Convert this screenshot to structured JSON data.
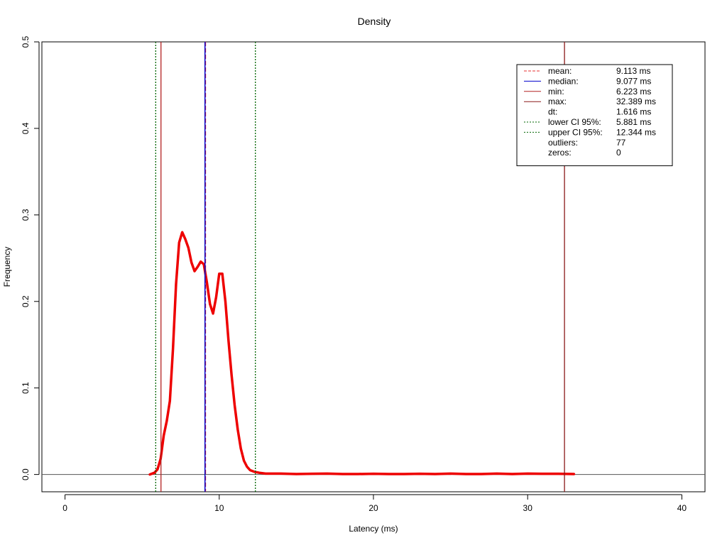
{
  "chart_data": {
    "type": "line",
    "title": "Density",
    "xlabel": "Latency (ms)",
    "ylabel": "Frequency",
    "xlim": [
      -1.5,
      41.5
    ],
    "ylim": [
      -0.02,
      0.5
    ],
    "x_ticks": [
      0,
      10,
      20,
      30,
      40
    ],
    "x_tick_labels": [
      "0",
      "10",
      "20",
      "30",
      "40"
    ],
    "y_ticks": [
      0.0,
      0.1,
      0.2,
      0.3,
      0.4,
      0.5
    ],
    "y_tick_labels": [
      "0.0",
      "0.1",
      "0.2",
      "0.3",
      "0.4",
      "0.5"
    ],
    "series": [
      {
        "color": "#ee0000",
        "x": [
          5.5,
          5.8,
          6.0,
          6.2,
          6.4,
          6.6,
          6.8,
          7.0,
          7.2,
          7.4,
          7.6,
          7.8,
          8.0,
          8.2,
          8.4,
          8.6,
          8.8,
          9.0,
          9.2,
          9.4,
          9.6,
          9.8,
          10.0,
          10.2,
          10.4,
          10.6,
          10.8,
          11.0,
          11.2,
          11.4,
          11.6,
          11.8,
          12.0,
          12.3,
          12.6,
          13.0,
          14,
          15,
          16,
          17,
          18,
          19,
          20,
          21,
          22,
          23,
          24,
          25,
          26,
          27,
          28,
          29,
          30,
          31,
          32,
          33
        ],
        "y": [
          0.0,
          0.002,
          0.006,
          0.018,
          0.045,
          0.062,
          0.085,
          0.145,
          0.22,
          0.268,
          0.28,
          0.272,
          0.262,
          0.245,
          0.235,
          0.24,
          0.246,
          0.243,
          0.222,
          0.197,
          0.186,
          0.205,
          0.232,
          0.232,
          0.2,
          0.155,
          0.115,
          0.08,
          0.052,
          0.03,
          0.016,
          0.009,
          0.005,
          0.003,
          0.002,
          0.001,
          0.001,
          0.0005,
          0.0008,
          0.001,
          0.0005,
          0.0005,
          0.0008,
          0.0005,
          0.0005,
          0.0008,
          0.0005,
          0.001,
          0.0005,
          0.0005,
          0.001,
          0.0005,
          0.001,
          0.0008,
          0.0008,
          0.0005
        ]
      }
    ],
    "hlines": [
      0
    ],
    "vlines": [
      {
        "name": "mean",
        "x": 9.113,
        "color": "#e63232",
        "style": "dashed"
      },
      {
        "name": "median",
        "x": 9.077,
        "color": "#0000cc",
        "style": "solid"
      },
      {
        "name": "min",
        "x": 6.223,
        "color": "#b22222",
        "style": "solid"
      },
      {
        "name": "max",
        "x": 32.389,
        "color": "#8b1a1a",
        "style": "solid"
      },
      {
        "name": "lower",
        "x": 5.881,
        "color": "#006400",
        "style": "dotted"
      },
      {
        "name": "upper",
        "x": 12.344,
        "color": "#006400",
        "style": "dotted"
      }
    ],
    "legend_position": "top-right",
    "legend": [
      {
        "label": "mean:",
        "value": "9.113 ms",
        "color": "#e63232",
        "line": "dashed"
      },
      {
        "label": "median:",
        "value": "9.077 ms",
        "color": "#0000cc",
        "line": "solid"
      },
      {
        "label": "min:",
        "value": "6.223 ms",
        "color": "#b22222",
        "line": "solid"
      },
      {
        "label": "max:",
        "value": "32.389 ms",
        "color": "#8b1a1a",
        "line": "solid"
      },
      {
        "label": "dt:",
        "value": "1.616 ms",
        "color": "",
        "line": "none"
      },
      {
        "label": "lower CI 95%:",
        "value": "5.881 ms",
        "color": "#006400",
        "line": "dotted"
      },
      {
        "label": "upper CI 95%:",
        "value": "12.344 ms",
        "color": "#006400",
        "line": "dotted"
      },
      {
        "label": "outliers:",
        "value": "77",
        "color": "",
        "line": "none"
      },
      {
        "label": "zeros:",
        "value": "0",
        "color": "",
        "line": "none"
      }
    ]
  }
}
